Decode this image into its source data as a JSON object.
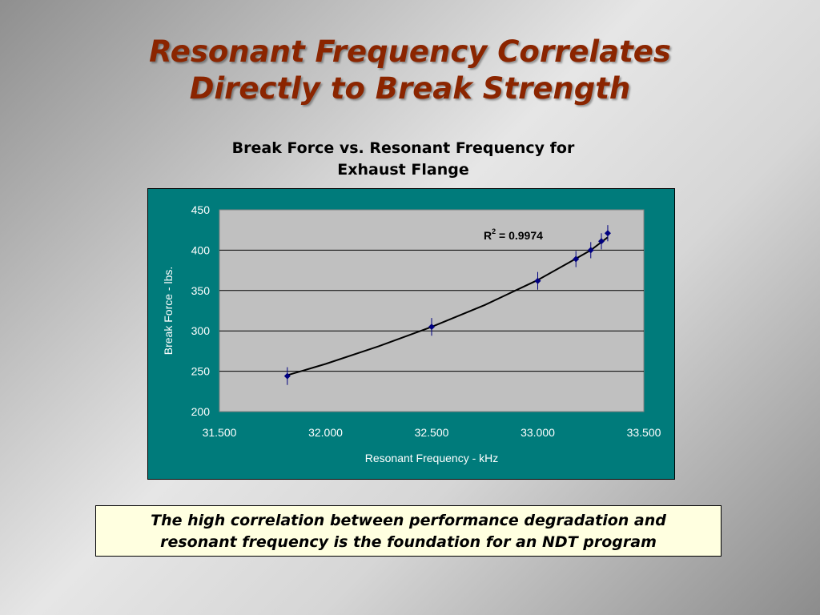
{
  "slide": {
    "title_line1": "Resonant Frequency Correlates",
    "title_line2": "Directly to Break Strength",
    "callout_line1": "The high correlation between performance degradation and",
    "callout_line2": "resonant frequency is the foundation for an NDT program"
  },
  "colors": {
    "title": "#8b2500",
    "chart_background": "#007b7b",
    "plot_background": "#c0c0c0",
    "marker": "#000080",
    "callout_background": "#ffffe0"
  },
  "chart_data": {
    "type": "scatter",
    "title_line1": "Break Force vs. Resonant Frequency for",
    "title_line2": "Exhaust Flange",
    "xlabel": "Resonant Frequency - kHz",
    "ylabel": "Break Force - lbs.",
    "xlim": [
      31.5,
      33.5
    ],
    "ylim": [
      200,
      450
    ],
    "x_ticks": [
      "31.500",
      "32.000",
      "32.500",
      "33.000",
      "33.500"
    ],
    "y_ticks": [
      "200",
      "250",
      "300",
      "350",
      "400",
      "450"
    ],
    "grid": "horizontal",
    "annotation_base": "R",
    "annotation_sup": "2",
    "annotation_rest": " = 0.9974",
    "points": [
      {
        "x": 31.82,
        "y": 244,
        "err": 11
      },
      {
        "x": 32.5,
        "y": 305,
        "err": 11
      },
      {
        "x": 33.0,
        "y": 362,
        "err": 11
      },
      {
        "x": 33.18,
        "y": 389,
        "err": 10
      },
      {
        "x": 33.25,
        "y": 400,
        "err": 10
      },
      {
        "x": 33.3,
        "y": 411,
        "err": 10
      },
      {
        "x": 33.33,
        "y": 421,
        "err": 10
      }
    ],
    "trendline": [
      {
        "x": 31.82,
        "y": 245
      },
      {
        "x": 32.0,
        "y": 259
      },
      {
        "x": 32.25,
        "y": 281
      },
      {
        "x": 32.5,
        "y": 305
      },
      {
        "x": 32.75,
        "y": 332
      },
      {
        "x": 33.0,
        "y": 363
      },
      {
        "x": 33.15,
        "y": 385
      },
      {
        "x": 33.25,
        "y": 400
      },
      {
        "x": 33.33,
        "y": 416
      }
    ]
  }
}
